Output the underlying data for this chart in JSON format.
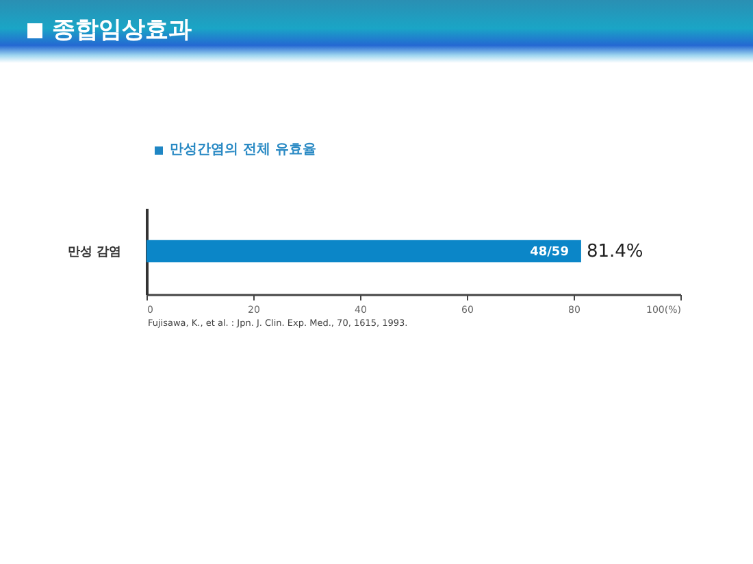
{
  "chart_data": {
    "type": "bar",
    "title": "종합임상효과",
    "subtitle": "만성간염의 전체 유효율",
    "orientation": "horizontal",
    "categories": [
      "만성 감염"
    ],
    "values": [
      81.4
    ],
    "color": "#0b86c8",
    "value_labels": [
      "81.4%"
    ],
    "xlim": [
      0,
      100
    ],
    "xticks": [
      0,
      20,
      40,
      60,
      80,
      {
        "value": 100,
        "label": "100(%)"
      }
    ],
    "annotations": [
      {
        "text": "48/59",
        "x": 81.4,
        "y": "만성 감염"
      },
      "Fujisawa, K., et al. : Jpn. J. Clin. Exp. Med., 70, 1615, 1993."
    ]
  }
}
